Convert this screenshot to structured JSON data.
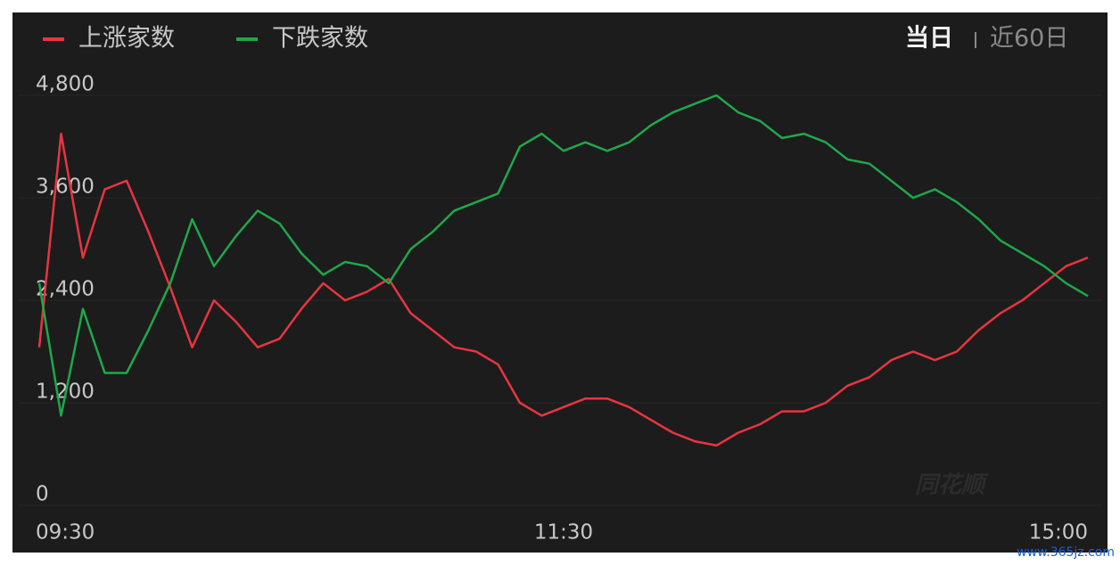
{
  "chart_data": {
    "type": "line",
    "tabs": [
      "当日",
      "近60日"
    ],
    "watermarks": [
      "同花顺",
      "www.365jz.com"
    ],
    "categories": [
      "09:30",
      null,
      null,
      null,
      null,
      null,
      null,
      null,
      null,
      null,
      null,
      null,
      null,
      null,
      null,
      null,
      null,
      null,
      null,
      null,
      null,
      null,
      null,
      null,
      "11:30",
      null,
      null,
      null,
      null,
      null,
      null,
      null,
      null,
      null,
      null,
      null,
      null,
      null,
      null,
      null,
      null,
      null,
      null,
      null,
      null,
      null,
      null,
      null,
      "15:00"
    ],
    "series": [
      {
        "name": "上涨家数",
        "color": "#e8353f",
        "values": [
          1850,
          4350,
          2900,
          3700,
          3800,
          3200,
          2550,
          1850,
          2400,
          2150,
          1850,
          1950,
          2300,
          2600,
          2400,
          2500,
          2650,
          2250,
          2050,
          1850,
          1800,
          1650,
          1200,
          1050,
          1150,
          1250,
          1250,
          1150,
          1000,
          850,
          750,
          700,
          850,
          950,
          1100,
          1100,
          1200,
          1400,
          1500,
          1700,
          1800,
          1700,
          1800,
          2050,
          2250,
          2400,
          2600,
          2800,
          2900
        ]
      },
      {
        "name": "下跌家数",
        "color": "#1fa84a",
        "values": [
          2600,
          1050,
          2300,
          1550,
          1550,
          2050,
          2600,
          3350,
          2800,
          3150,
          3450,
          3300,
          2950,
          2700,
          2850,
          2800,
          2600,
          3000,
          3200,
          3450,
          3550,
          3650,
          4200,
          4350,
          4150,
          4250,
          4150,
          4250,
          4450,
          4600,
          4700,
          4800,
          4600,
          4500,
          4300,
          4350,
          4250,
          4050,
          4000,
          3800,
          3600,
          3700,
          3550,
          3350,
          3100,
          2950,
          2800,
          2600,
          2450
        ]
      }
    ],
    "ylim": [
      0,
      4800
    ],
    "yticks": [
      0,
      {
        "value": 1200,
        "label": "1,200"
      },
      {
        "value": 2400,
        "label": "2,400"
      },
      {
        "value": 3600,
        "label": "3,600"
      },
      {
        "value": 4800,
        "label": "4,800"
      }
    ],
    "grid": true
  }
}
